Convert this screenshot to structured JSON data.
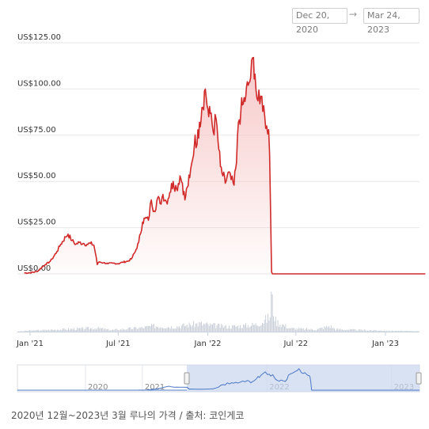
{
  "range_selector": {
    "from": "Dec 20, 2020",
    "arrow": "→",
    "to": "Mar 24, 2023"
  },
  "caption": "2020년 12월~2023년 3월 루나의 가격 / 출처: 코인게코",
  "colors": {
    "price_line": "#d12a2a",
    "price_fill": "#f7c6c6",
    "volume": "#c9cfd8",
    "navigator_line": "#4a78c6",
    "navigator_window": "#c9d6ee",
    "grid": "#e6e6e6",
    "axis": "#c9d3e0"
  },
  "chart_data": {
    "type": "area",
    "title": "",
    "ylabel": "",
    "xlabel": "",
    "ylim": [
      0,
      125
    ],
    "yticks": [
      {
        "value": 0,
        "label": "US$0.00"
      },
      {
        "value": 25,
        "label": "US$25.00"
      },
      {
        "value": 50,
        "label": "US$50.00"
      },
      {
        "value": 75,
        "label": "US$75.00"
      },
      {
        "value": 100,
        "label": "US$100.00"
      },
      {
        "value": 125,
        "label": "US$125.00"
      }
    ],
    "xlim": [
      "2020-12-20",
      "2023-03-24"
    ],
    "xticks": [
      {
        "date": "2021-01-01",
        "label": "Jan '21"
      },
      {
        "date": "2021-07-01",
        "label": "Jul '21"
      },
      {
        "date": "2022-01-01",
        "label": "Jan '22"
      },
      {
        "date": "2022-07-01",
        "label": "Jul '22"
      },
      {
        "date": "2023-01-01",
        "label": "Jan '23"
      }
    ],
    "grid": true,
    "series": [
      {
        "kind": "price",
        "points": [
          [
            "2020-12-20",
            0.5
          ],
          [
            "2021-01-01",
            0.6
          ],
          [
            "2021-01-15",
            1.2
          ],
          [
            "2021-01-25",
            3.5
          ],
          [
            "2021-02-01",
            5
          ],
          [
            "2021-02-10",
            6.5
          ],
          [
            "2021-02-15",
            8
          ],
          [
            "2021-02-25",
            12
          ],
          [
            "2021-03-05",
            16
          ],
          [
            "2021-03-15",
            20
          ],
          [
            "2021-03-20",
            21.5
          ],
          [
            "2021-03-28",
            18
          ],
          [
            "2021-04-05",
            16
          ],
          [
            "2021-04-12",
            17
          ],
          [
            "2021-04-20",
            16.5
          ],
          [
            "2021-04-28",
            16
          ],
          [
            "2021-05-05",
            16.5
          ],
          [
            "2021-05-12",
            15.5
          ],
          [
            "2021-05-17",
            9
          ],
          [
            "2021-05-19",
            5
          ],
          [
            "2021-05-23",
            6.5
          ],
          [
            "2021-06-01",
            6
          ],
          [
            "2021-06-10",
            5.5
          ],
          [
            "2021-06-20",
            5.8
          ],
          [
            "2021-07-01",
            5.5
          ],
          [
            "2021-07-10",
            6.3
          ],
          [
            "2021-07-20",
            6.8
          ],
          [
            "2021-07-28",
            8
          ],
          [
            "2021-08-05",
            12
          ],
          [
            "2021-08-12",
            17
          ],
          [
            "2021-08-20",
            28
          ],
          [
            "2021-08-25",
            30
          ],
          [
            "2021-09-01",
            29
          ],
          [
            "2021-09-07",
            40
          ],
          [
            "2021-09-13",
            34
          ],
          [
            "2021-09-20",
            41
          ],
          [
            "2021-09-25",
            38
          ],
          [
            "2021-10-01",
            43
          ],
          [
            "2021-10-08",
            39
          ],
          [
            "2021-10-15",
            44
          ],
          [
            "2021-10-22",
            50
          ],
          [
            "2021-10-29",
            46
          ],
          [
            "2021-11-05",
            53
          ],
          [
            "2021-11-10",
            49
          ],
          [
            "2021-11-15",
            40
          ],
          [
            "2021-11-20",
            47
          ],
          [
            "2021-11-25",
            52
          ],
          [
            "2021-12-01",
            62
          ],
          [
            "2021-12-06",
            75
          ],
          [
            "2021-12-10",
            70
          ],
          [
            "2021-12-15",
            82
          ],
          [
            "2021-12-20",
            90
          ],
          [
            "2021-12-27",
            100
          ],
          [
            "2022-01-03",
            85
          ],
          [
            "2022-01-08",
            87
          ],
          [
            "2022-01-12",
            77
          ],
          [
            "2022-01-18",
            84
          ],
          [
            "2022-01-22",
            72
          ],
          [
            "2022-01-27",
            58
          ],
          [
            "2022-02-01",
            53
          ],
          [
            "2022-02-06",
            49
          ],
          [
            "2022-02-12",
            55
          ],
          [
            "2022-02-18",
            51
          ],
          [
            "2022-02-24",
            48
          ],
          [
            "2022-03-01",
            60
          ],
          [
            "2022-03-05",
            82
          ],
          [
            "2022-03-10",
            88
          ],
          [
            "2022-03-15",
            92
          ],
          [
            "2022-03-20",
            96
          ],
          [
            "2022-03-25",
            102
          ],
          [
            "2022-03-30",
            106
          ],
          [
            "2022-04-05",
            117
          ],
          [
            "2022-04-08",
            108
          ],
          [
            "2022-04-12",
            95
          ],
          [
            "2022-04-18",
            92
          ],
          [
            "2022-04-22",
            96
          ],
          [
            "2022-04-28",
            85
          ],
          [
            "2022-05-02",
            80
          ],
          [
            "2022-05-06",
            78
          ],
          [
            "2022-05-08",
            65
          ],
          [
            "2022-05-10",
            35
          ],
          [
            "2022-05-12",
            1
          ],
          [
            "2022-05-14",
            0.01
          ],
          [
            "2022-06-01",
            0.0001
          ],
          [
            "2023-03-24",
            0.0001
          ]
        ]
      },
      {
        "kind": "volume",
        "relative_levels": [
          [
            "2020-12-20",
            0.02
          ],
          [
            "2021-02-01",
            0.04
          ],
          [
            "2021-03-15",
            0.06
          ],
          [
            "2021-05-19",
            0.09
          ],
          [
            "2021-06-15",
            0.04
          ],
          [
            "2021-08-20",
            0.1
          ],
          [
            "2021-09-10",
            0.14
          ],
          [
            "2021-10-20",
            0.12
          ],
          [
            "2021-12-15",
            0.2
          ],
          [
            "2022-01-05",
            0.16
          ],
          [
            "2022-02-10",
            0.12
          ],
          [
            "2022-03-20",
            0.15
          ],
          [
            "2022-04-10",
            0.18
          ],
          [
            "2022-05-08",
            0.35
          ],
          [
            "2022-05-11",
            1.0
          ],
          [
            "2022-05-13",
            0.7
          ],
          [
            "2022-05-20",
            0.25
          ],
          [
            "2022-06-20",
            0.08
          ],
          [
            "2022-08-10",
            0.05
          ],
          [
            "2022-09-08",
            0.14
          ],
          [
            "2022-09-20",
            0.06
          ],
          [
            "2022-11-10",
            0.04
          ],
          [
            "2023-01-10",
            0.02
          ],
          [
            "2023-03-24",
            0.01
          ]
        ]
      }
    ],
    "navigator": {
      "labels": [
        "2020",
        "2021",
        "2022",
        "2023"
      ],
      "label_dates": [
        "2020-12-20",
        "2021-01-01",
        "2022-01-01",
        "2023-01-01"
      ],
      "window": [
        "2021-01-01",
        "2023-03-24"
      ]
    }
  }
}
